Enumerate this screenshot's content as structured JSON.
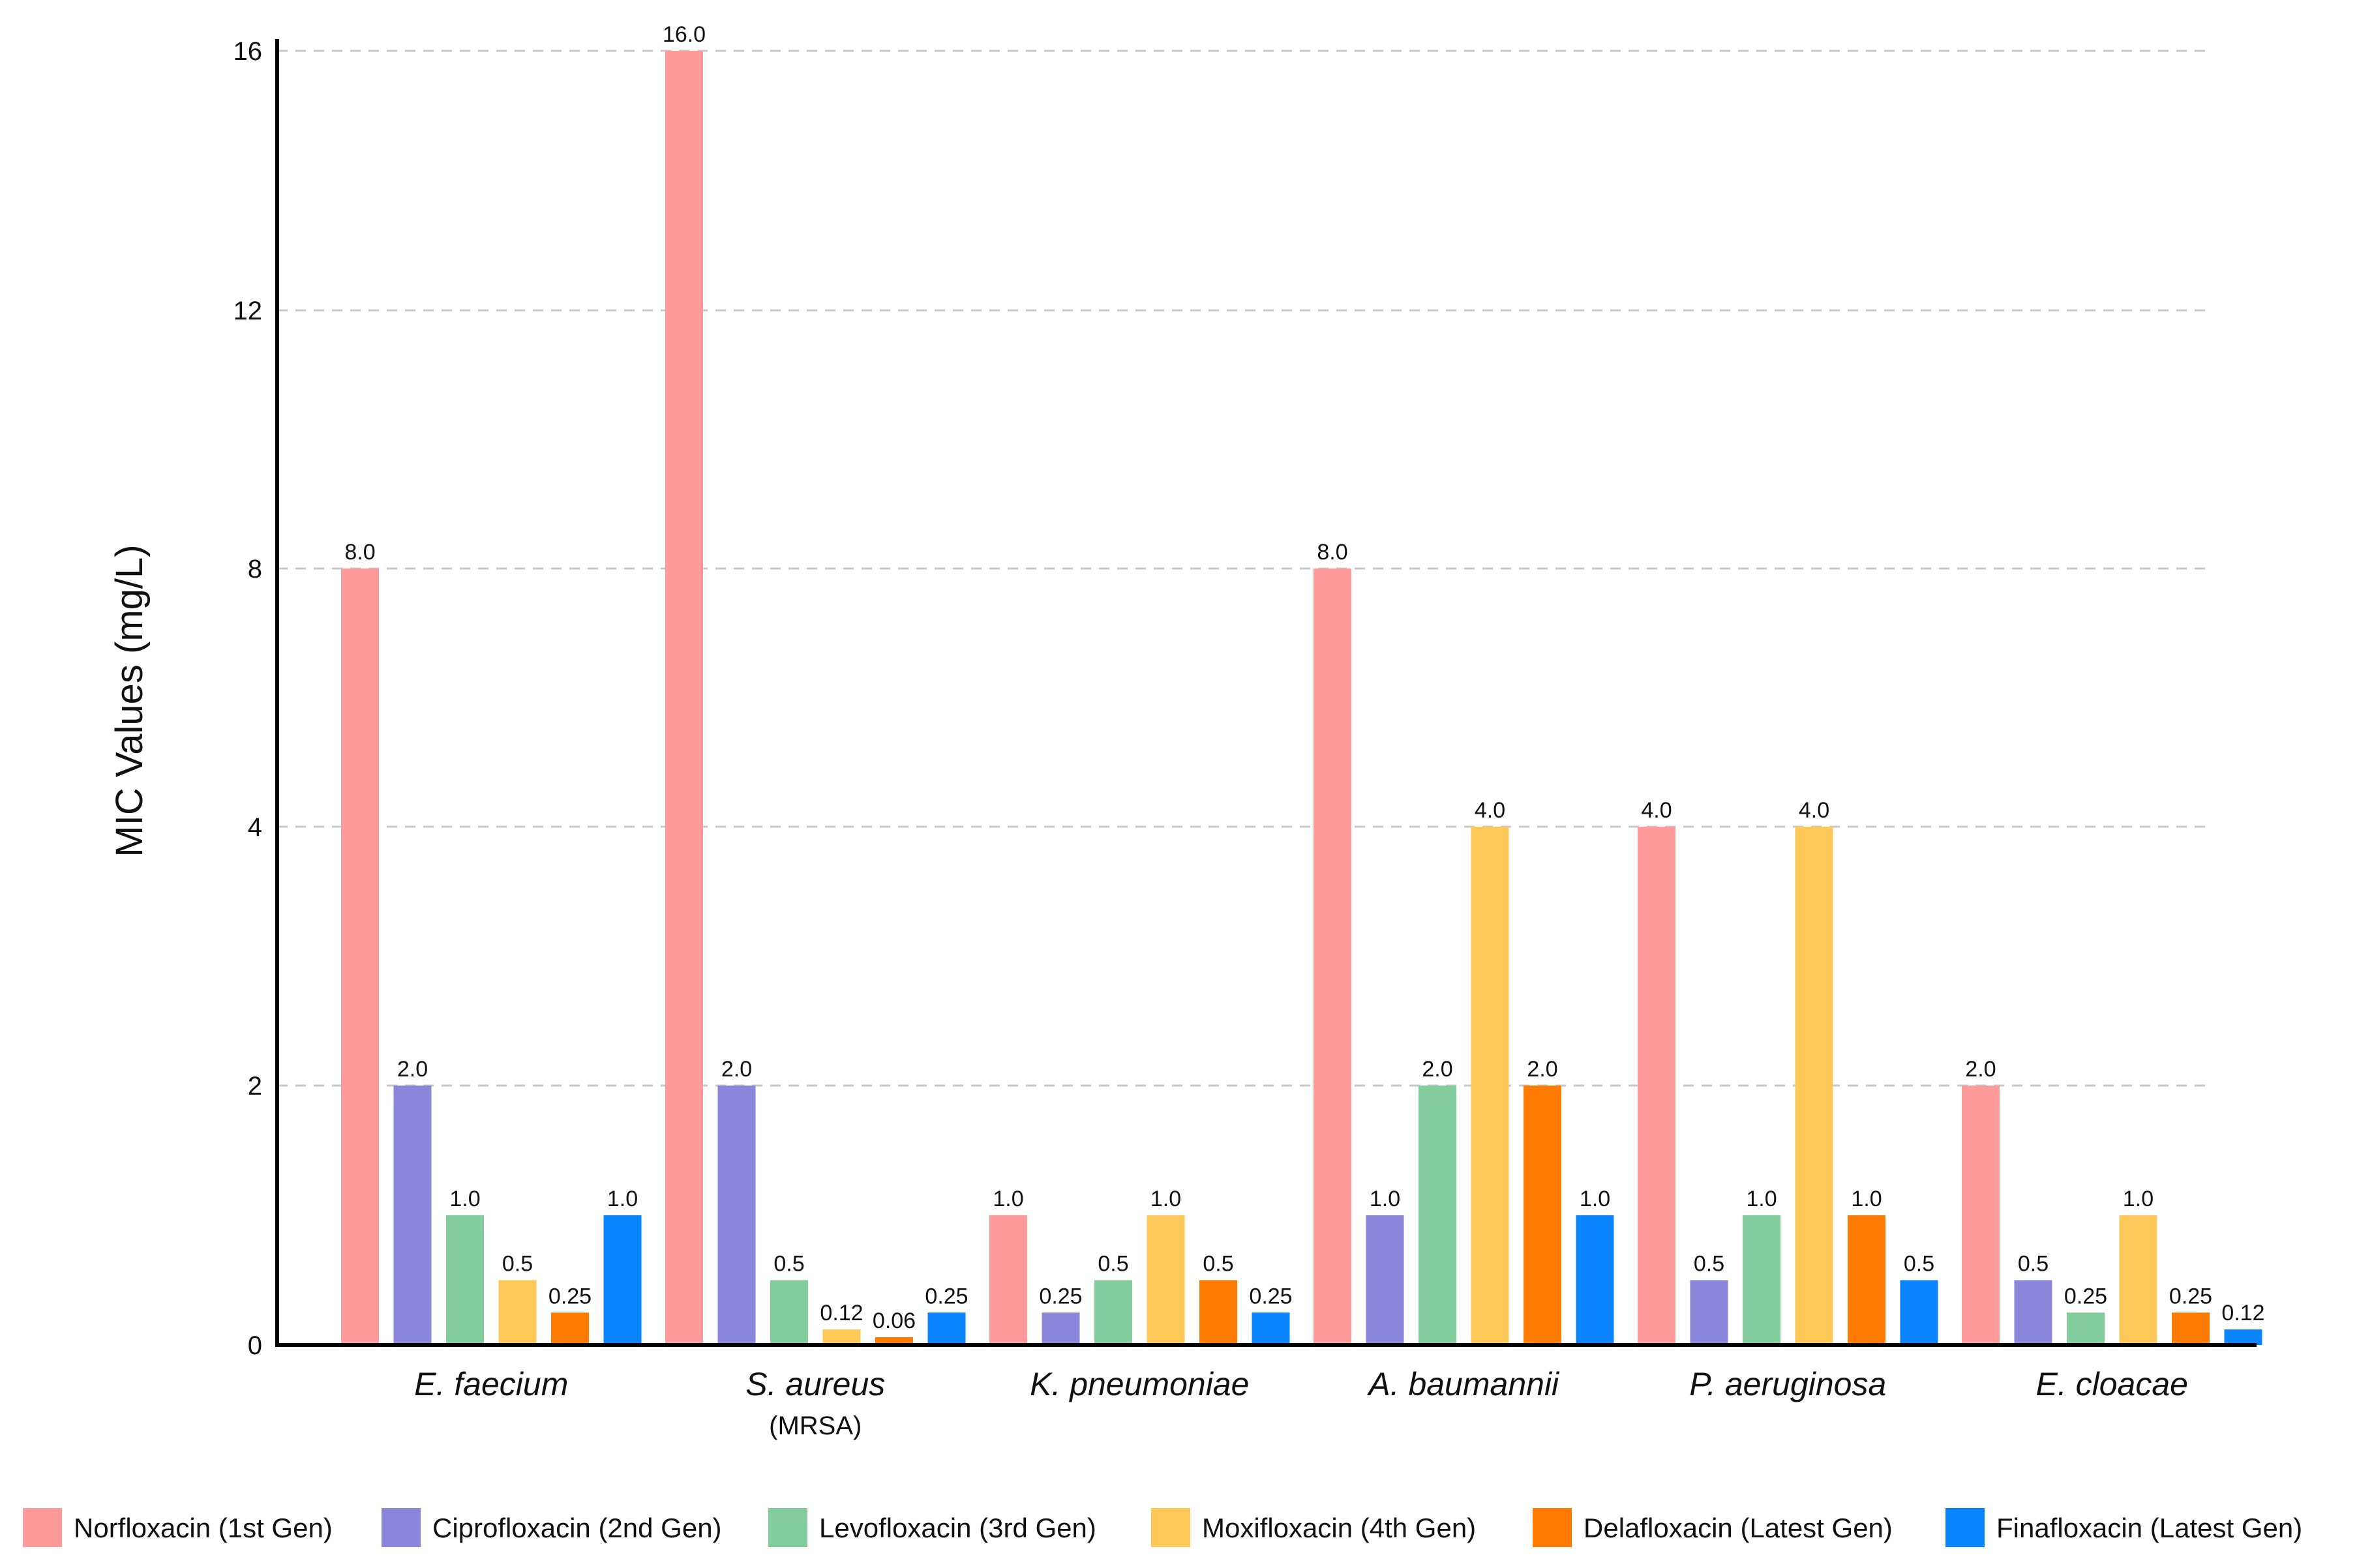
{
  "chart_data": {
    "type": "bar",
    "title": "",
    "xlabel": "",
    "ylabel": "MIC Values (mg/L)",
    "y_scale": "piecewise-linear",
    "y_ticks": [
      "0",
      "2",
      "4",
      "8",
      "12",
      "16"
    ],
    "ylim": [
      0,
      16
    ],
    "grid": true,
    "legend_position": "bottom",
    "categories": [
      {
        "name": "E. faecium",
        "sub": ""
      },
      {
        "name": "S. aureus",
        "sub": "(MRSA)"
      },
      {
        "name": "K. pneumoniae",
        "sub": ""
      },
      {
        "name": "A. baumannii",
        "sub": ""
      },
      {
        "name": "P. aeruginosa",
        "sub": ""
      },
      {
        "name": "E. cloacae",
        "sub": ""
      }
    ],
    "series": [
      {
        "name": "Norfloxacin (1st Gen)",
        "color": "#FF9B9B",
        "values": [
          8.0,
          16.0,
          1.0,
          8.0,
          4.0,
          2.0
        ],
        "labels": [
          "8.0",
          "16.0",
          "1.0",
          "8.0",
          "4.0",
          "2.0"
        ]
      },
      {
        "name": "Ciprofloxacin (2nd Gen)",
        "color": "#8C86DA",
        "values": [
          2.0,
          2.0,
          0.25,
          1.0,
          0.5,
          0.5
        ],
        "labels": [
          "2.0",
          "2.0",
          "0.25",
          "1.0",
          "0.5",
          "0.5"
        ]
      },
      {
        "name": "Levofloxacin (3rd Gen)",
        "color": "#82CC9E",
        "values": [
          1.0,
          0.5,
          0.5,
          2.0,
          1.0,
          0.25
        ],
        "labels": [
          "1.0",
          "0.5",
          "0.5",
          "2.0",
          "1.0",
          "0.25"
        ]
      },
      {
        "name": "Moxifloxacin (4th Gen)",
        "color": "#FFC95A",
        "values": [
          0.5,
          0.12,
          1.0,
          4.0,
          4.0,
          1.0
        ],
        "labels": [
          "0.5",
          "0.12",
          "1.0",
          "4.0",
          "4.0",
          "1.0"
        ]
      },
      {
        "name": "Delafloxacin (Latest Gen)",
        "color": "#FF7A00",
        "values": [
          0.25,
          0.06,
          0.5,
          2.0,
          1.0,
          0.25
        ],
        "labels": [
          "0.25",
          "0.06",
          "0.5",
          "2.0",
          "1.0",
          "0.25"
        ]
      },
      {
        "name": "Finafloxacin (Latest Gen)",
        "color": "#0A84FF",
        "values": [
          1.0,
          0.25,
          0.25,
          1.0,
          0.5,
          0.12
        ],
        "labels": [
          "1.0",
          "0.25",
          "0.25",
          "1.0",
          "0.5",
          "0.12"
        ]
      }
    ]
  }
}
